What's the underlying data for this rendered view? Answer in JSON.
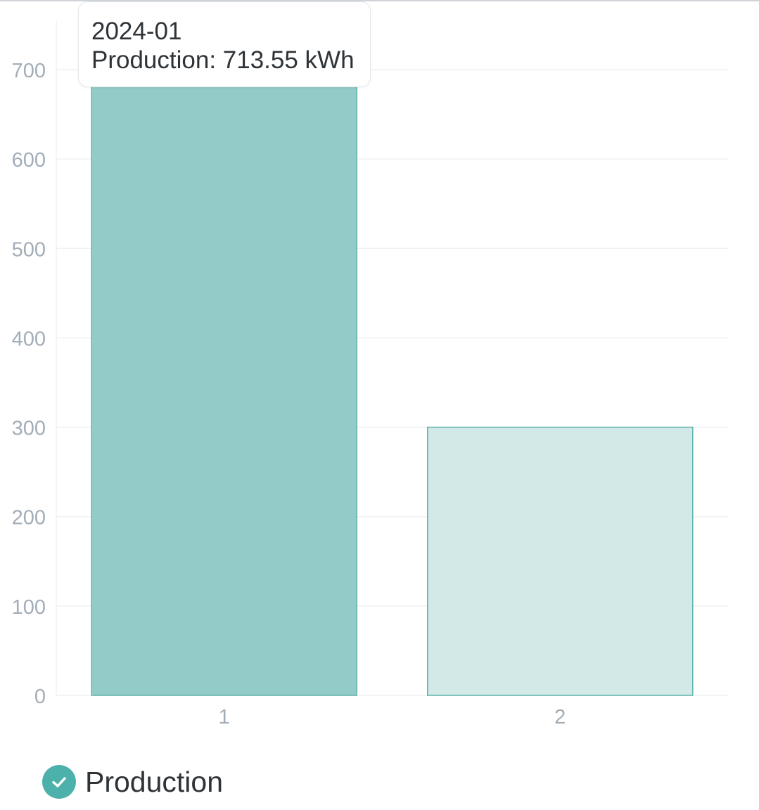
{
  "chart_data": {
    "type": "bar",
    "categories": [
      "1",
      "2"
    ],
    "series": [
      {
        "name": "Production",
        "values": [
          713.55,
          300
        ]
      }
    ],
    "title": "",
    "xlabel": "",
    "ylabel": "",
    "ylim": [
      0,
      700
    ],
    "yticks": [
      "0",
      "100",
      "200",
      "300",
      "400",
      "500",
      "600",
      "700"
    ],
    "grid": true,
    "legend_position": "bottom-left",
    "active_category_index": 0
  },
  "tooltip": {
    "title": "2024-01",
    "series_label": "Production",
    "value": "713.55",
    "unit": "kWh",
    "line": "Production: 713.55 kWh"
  },
  "legend": {
    "label": "Production",
    "checked": true,
    "icon": "check-icon"
  },
  "colors": {
    "accent": "#4db1ab",
    "bar_active_fill": "#93cbc8",
    "bar_inactive_fill": "#d3e9e8",
    "bar_stroke": "#5fb1ac",
    "axis_text": "#a3adb7",
    "grid": "#eef0f2",
    "text": "#2e3338"
  }
}
